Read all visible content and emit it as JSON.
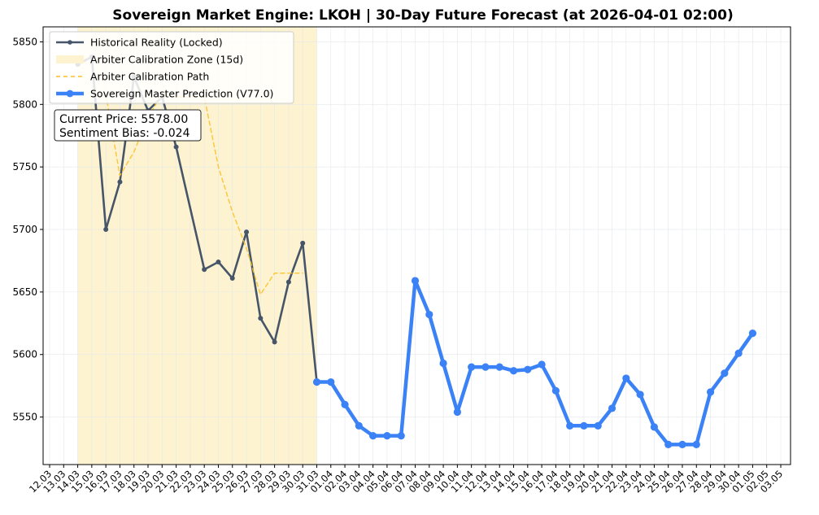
{
  "chart_data": {
    "type": "line",
    "title": "Sovereign Market Engine: LKOH | 30-Day Future Forecast (at 2026-04-01 02:00)",
    "xlabel": "",
    "ylabel": "",
    "ylim": [
      5512,
      5862
    ],
    "yticks": [
      5550,
      5600,
      5650,
      5700,
      5750,
      5800,
      5850
    ],
    "grid": true,
    "legend_position": "top-left",
    "x_tick_labels": [
      "12.03",
      "13.03",
      "14.03",
      "15.03",
      "16.03",
      "17.03",
      "18.03",
      "19.03",
      "20.03",
      "21.03",
      "22.03",
      "23.03",
      "24.03",
      "25.03",
      "26.03",
      "27.03",
      "28.03",
      "29.03",
      "30.03",
      "31.03",
      "01.04",
      "02.04",
      "03.04",
      "04.04",
      "05.04",
      "06.04",
      "07.04",
      "08.04",
      "09.04",
      "10.04",
      "11.04",
      "12.04",
      "13.04",
      "14.04",
      "15.04",
      "16.04",
      "17.04",
      "18.04",
      "19.04",
      "20.04",
      "21.04",
      "22.04",
      "23.04",
      "24.04",
      "25.04",
      "26.04",
      "27.04",
      "28.04",
      "29.04",
      "30.04",
      "01.05",
      "02.05",
      "03.05"
    ],
    "calibration_zone": {
      "start": "14.03",
      "end": "31.03"
    },
    "series": [
      {
        "name": "Historical Reality (Locked)",
        "color": "#475569",
        "points": [
          [
            "14.03",
            5832
          ],
          [
            "15.03",
            5838
          ],
          [
            "16.03",
            5700
          ],
          [
            "17.03",
            5738
          ],
          [
            "18.03",
            5822
          ],
          [
            "19.03",
            5795
          ],
          [
            "20.03",
            5806
          ],
          [
            "21.03",
            5766
          ],
          [
            "23.03",
            5668
          ],
          [
            "24.03",
            5674
          ],
          [
            "25.03",
            5661
          ],
          [
            "26.03",
            5698
          ],
          [
            "27.03",
            5629
          ],
          [
            "28.03",
            5610
          ],
          [
            "29.03",
            5658
          ],
          [
            "30.03",
            5689
          ],
          [
            "31.03",
            5578
          ]
        ]
      },
      {
        "name": "Arbiter Calibration Path",
        "color": "#fbbf24",
        "points": [
          [
            "16.03",
            5808
          ],
          [
            "17.03",
            5743
          ],
          [
            "18.03",
            5762
          ],
          [
            "19.03",
            5790
          ],
          [
            "20.03",
            5808
          ],
          [
            "21.03",
            5806
          ],
          [
            "22.03",
            5806
          ],
          [
            "23.03",
            5806
          ],
          [
            "24.03",
            5750
          ],
          [
            "25.03",
            5714
          ],
          [
            "26.03",
            5685
          ],
          [
            "27.03",
            5648
          ],
          [
            "28.03",
            5665
          ],
          [
            "29.03",
            5665
          ],
          [
            "30.03",
            5665
          ]
        ]
      },
      {
        "name": "Sovereign Master Prediction (V77.0)",
        "color": "#3b82f6",
        "points": [
          [
            "31.03",
            5578
          ],
          [
            "01.04",
            5578
          ],
          [
            "02.04",
            5560
          ],
          [
            "03.04",
            5543
          ],
          [
            "04.04",
            5535
          ],
          [
            "05.04",
            5535
          ],
          [
            "06.04",
            5535
          ],
          [
            "07.04",
            5659
          ],
          [
            "08.04",
            5632
          ],
          [
            "09.04",
            5593
          ],
          [
            "10.04",
            5554
          ],
          [
            "11.04",
            5590
          ],
          [
            "12.04",
            5590
          ],
          [
            "13.04",
            5590
          ],
          [
            "14.04",
            5587
          ],
          [
            "15.04",
            5588
          ],
          [
            "16.04",
            5592
          ],
          [
            "17.04",
            5571
          ],
          [
            "18.04",
            5543
          ],
          [
            "19.04",
            5543
          ],
          [
            "20.04",
            5543
          ],
          [
            "21.04",
            5557
          ],
          [
            "22.04",
            5581
          ],
          [
            "23.04",
            5568
          ],
          [
            "24.04",
            5542
          ],
          [
            "25.04",
            5528
          ],
          [
            "26.04",
            5528
          ],
          [
            "27.04",
            5528
          ],
          [
            "28.04",
            5570
          ],
          [
            "29.04",
            5585
          ],
          [
            "30.04",
            5601
          ],
          [
            "01.05",
            5617
          ]
        ]
      }
    ],
    "legend": [
      {
        "label": "Historical Reality (Locked)",
        "kind": "line-marker",
        "color": "#475569"
      },
      {
        "label": "Arbiter Calibration Zone (15d)",
        "kind": "patch",
        "color": "#fdf3d0"
      },
      {
        "label": "Arbiter Calibration Path",
        "kind": "dashed",
        "color": "#fbbf24"
      },
      {
        "label": "Sovereign Master Prediction (V77.0)",
        "kind": "thick-marker",
        "color": "#3b82f6"
      }
    ],
    "annotation": {
      "line1": "Current Price: 5578.00",
      "line2": "Sentiment Bias: -0.024"
    },
    "colors": {
      "zone_fill": "#fdf3d0",
      "grid": "#e5e7eb",
      "axis": "#000000"
    }
  }
}
